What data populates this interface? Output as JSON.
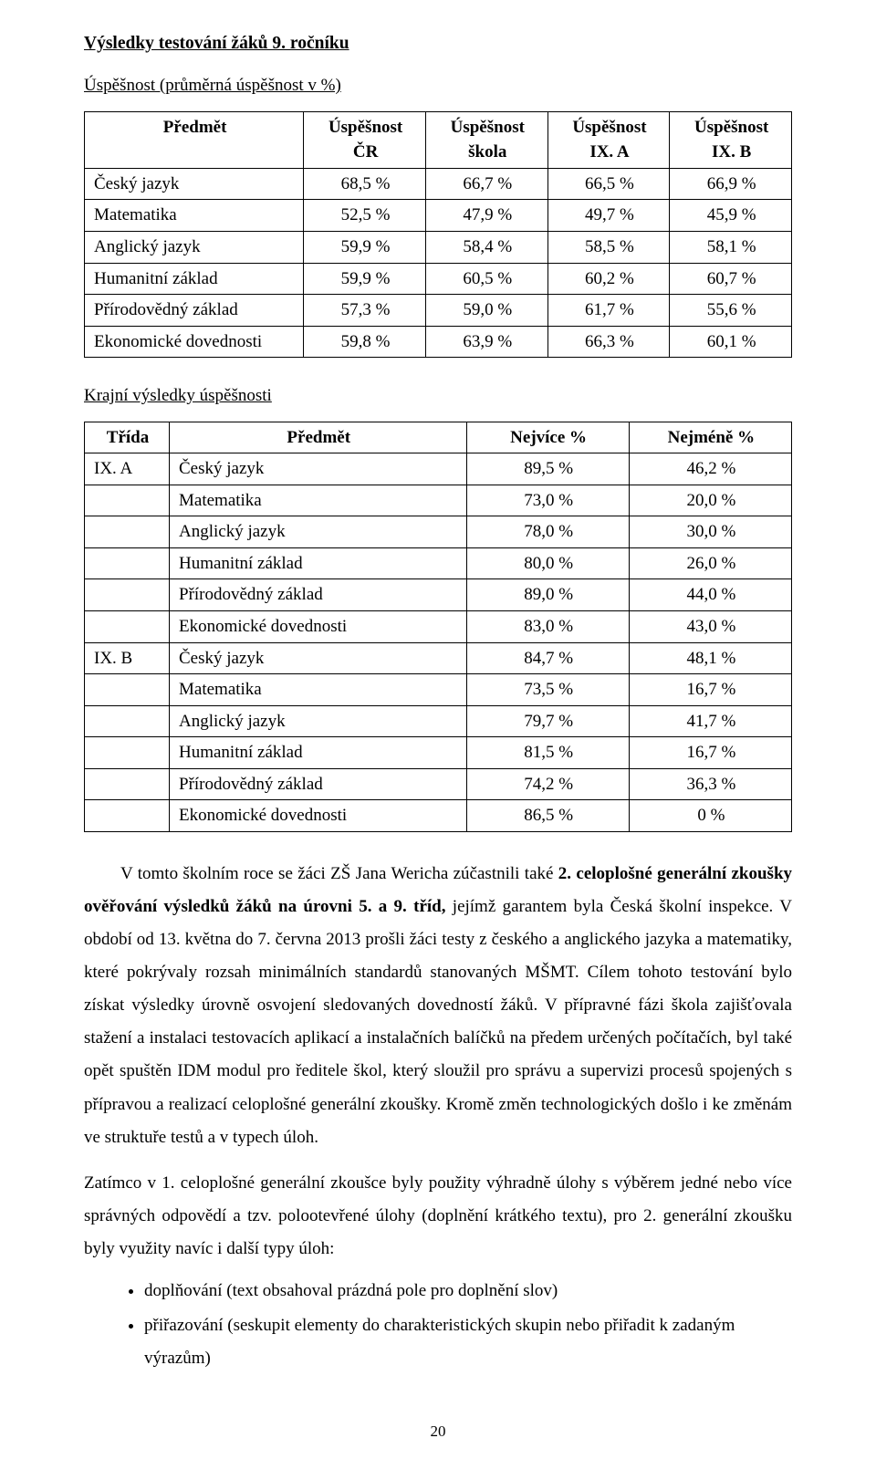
{
  "title": "Výsledky testování žáků 9. ročníku",
  "subtitle": "Úspěšnost (průměrná úspěšnost v %)",
  "table1": {
    "columns": [
      "Předmět",
      "Úspěšnost ČR",
      "Úspěšnost škola",
      "Úspěšnost IX. A",
      "Úspěšnost IX. B"
    ],
    "rows": [
      [
        "Český jazyk",
        "68,5 %",
        "66,7 %",
        "66,5 %",
        "66,9 %"
      ],
      [
        "Matematika",
        "52,5 %",
        "47,9 %",
        "49,7 %",
        "45,9 %"
      ],
      [
        "Anglický jazyk",
        "59,9 %",
        "58,4 %",
        "58,5 %",
        "58,1 %"
      ],
      [
        "Humanitní základ",
        "59,9 %",
        "60,5 %",
        "60,2 %",
        "60,7 %"
      ],
      [
        "Přírodovědný základ",
        "57,3 %",
        "59,0 %",
        "61,7 %",
        "55,6 %"
      ],
      [
        "Ekonomické dovednosti",
        "59,8 %",
        "63,9 %",
        "66,3 %",
        "60,1 %"
      ]
    ]
  },
  "section2_title": "Krajní výsledky úspěšnosti",
  "table2": {
    "columns": [
      "Třída",
      "Předmět",
      "Nejvíce %",
      "Nejméně %"
    ],
    "rows": [
      [
        "IX. A",
        "Český jazyk",
        "89,5 %",
        "46,2 %"
      ],
      [
        "",
        "Matematika",
        "73,0 %",
        "20,0 %"
      ],
      [
        "",
        "Anglický jazyk",
        "78,0 %",
        "30,0 %"
      ],
      [
        "",
        "Humanitní základ",
        "80,0 %",
        "26,0 %"
      ],
      [
        "",
        "Přírodovědný základ",
        "89,0 %",
        "44,0 %"
      ],
      [
        "",
        "Ekonomické dovednosti",
        "83,0 %",
        "43,0 %"
      ],
      [
        "IX. B",
        "Český jazyk",
        "84,7 %",
        "48,1 %"
      ],
      [
        "",
        "Matematika",
        "73,5 %",
        "16,7 %"
      ],
      [
        "",
        "Anglický jazyk",
        "79,7 %",
        "41,7 %"
      ],
      [
        "",
        "Humanitní základ",
        "81,5 %",
        "16,7 %"
      ],
      [
        "",
        "Přírodovědný základ",
        "74,2 %",
        "36,3 %"
      ],
      [
        "",
        "Ekonomické dovednosti",
        "86,5 %",
        "0 %"
      ]
    ]
  },
  "para1_a": "V tomto školním roce se žáci ZŠ Jana Wericha zúčastnili také ",
  "para1_b": "2. celoplošné generální zkoušky ověřování výsledků žáků na úrovni 5. a 9. tříd,",
  "para1_c": " jejímž garantem byla Česká školní inspekce. V období od 13. května do 7. června 2013 prošli žáci testy z českého a anglického jazyka a matematiky, které pokrývaly rozsah minimálních standardů stanovaných MŠMT. Cílem tohoto testování bylo získat výsledky úrovně osvojení sledovaných dovedností žáků. V přípravné fázi škola zajišťovala stažení a instalaci testovacích aplikací a instalačních balíčků na předem určených počítačích, byl také opět spuštěn IDM modul pro ředitele škol, který sloužil pro správu a supervizi procesů spojených s přípravou a realizací celoplošné generální zkoušky. Kromě změn technologických došlo i ke změnám ve struktuře testů a v typech úloh.",
  "para2": "Zatímco v 1. celoplošné generální zkoušce byly použity výhradně úlohy s výběrem jedné nebo více správných odpovědí a tzv. polootevřené úlohy (doplnění krátkého textu), pro 2. generální zkoušku byly využity navíc i další typy úloh:",
  "bullets": [
    "doplňování (text obsahoval prázdná pole pro doplnění slov)",
    "přiřazování (seskupit elementy do charakteristických skupin nebo přiřadit k zadaným výrazům)"
  ],
  "page_number": "20"
}
